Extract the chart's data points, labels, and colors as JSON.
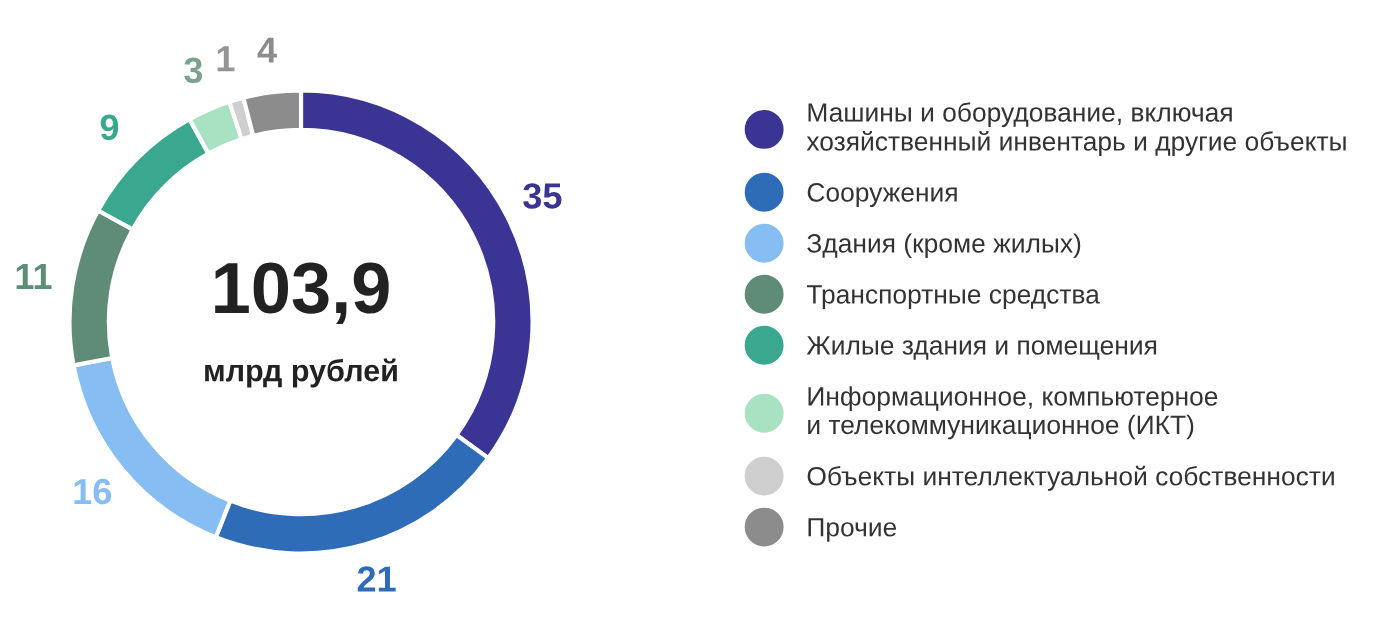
{
  "chart_data": {
    "type": "donut",
    "categories": [
      "Машины и оборудование, включая\nхозяйственный инвентарь и другие объекты",
      "Сооружения",
      "Здания (кроме жилых)",
      "Транспортные средства",
      "Жилые здания и помещения",
      "Информационное, компьютерное\nи телекоммуникационное (ИКТ)",
      "Объекты интеллектуальной собственности",
      "Прочие"
    ],
    "values": [
      35,
      21,
      16,
      11,
      9,
      3,
      1,
      4
    ],
    "colors": [
      "#3a3494",
      "#2f6cb8",
      "#86bdf2",
      "#5e8c76",
      "#3aa88f",
      "#a8e2c2",
      "#cfcfcf",
      "#8c8c8c"
    ],
    "data_labels": true,
    "legend": "right",
    "annotations": [
      "103,9",
      "млрд рублей"
    ]
  }
}
